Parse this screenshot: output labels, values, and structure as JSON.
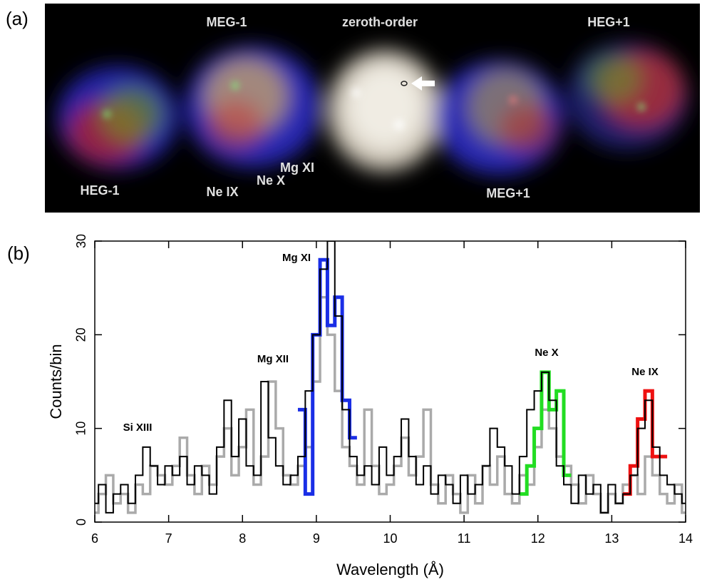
{
  "panel_a": {
    "label": "(a)",
    "labels": [
      "MEG-1",
      "zeroth-order",
      "HEG+1",
      "HEG-1",
      "Ne IX",
      "Ne X",
      "Mg XI",
      "MEG+1"
    ]
  },
  "chart_data": {
    "type": "line",
    "step": true,
    "panel_label": "(b)",
    "xlabel": "Wavelength (Å)",
    "ylabel": "Counts/bin",
    "xlim": [
      6,
      14
    ],
    "xticks": [
      6,
      7,
      8,
      9,
      10,
      11,
      12,
      13,
      14
    ],
    "ylim": [
      0,
      30
    ],
    "yticks": [
      0,
      10,
      20,
      30
    ],
    "grid": false,
    "annotations": [
      "Si XIII",
      "Mg XII",
      "Mg XI",
      "Ne X",
      "Ne IX"
    ],
    "x": [
      6.0,
      6.1,
      6.2,
      6.3,
      6.4,
      6.5,
      6.6,
      6.7,
      6.8,
      6.9,
      7.0,
      7.1,
      7.2,
      7.3,
      7.4,
      7.5,
      7.6,
      7.7,
      7.8,
      7.9,
      8.0,
      8.1,
      8.2,
      8.3,
      8.4,
      8.5,
      8.6,
      8.7,
      8.8,
      8.9,
      9.0,
      9.1,
      9.2,
      9.3,
      9.4,
      9.5,
      9.6,
      9.7,
      9.8,
      9.9,
      10.0,
      10.1,
      10.2,
      10.3,
      10.4,
      10.5,
      10.6,
      10.7,
      10.8,
      10.9,
      11.0,
      11.1,
      11.2,
      11.3,
      11.4,
      11.5,
      11.6,
      11.7,
      11.8,
      11.9,
      12.0,
      12.1,
      12.2,
      12.3,
      12.4,
      12.5,
      12.6,
      12.7,
      12.8,
      12.9,
      13.0,
      13.1,
      13.2,
      13.3,
      13.4,
      13.5,
      13.6,
      13.7,
      13.8,
      13.9,
      14.0
    ],
    "series": [
      {
        "color": "#aaaaaa",
        "width": 3.5,
        "values": [
          1,
          3,
          5,
          2,
          3,
          1,
          4,
          3,
          6,
          5,
          4,
          6,
          9,
          5,
          3,
          6,
          4,
          7,
          10,
          5,
          8,
          12,
          4,
          7,
          15,
          10,
          5,
          4,
          6,
          8,
          15,
          24,
          20,
          14,
          8,
          6,
          4,
          12,
          6,
          3,
          4,
          6,
          9,
          5,
          7,
          12,
          4,
          2,
          5,
          3,
          1,
          5,
          2,
          6,
          4,
          7,
          3,
          2,
          5,
          4,
          8,
          12,
          10,
          7,
          6,
          4,
          2,
          5,
          3,
          1,
          3,
          2,
          4,
          5,
          3,
          7,
          5,
          3,
          2,
          4,
          1
        ]
      },
      {
        "color": "#1a2ee6",
        "width": 5,
        "values": [
          null,
          null,
          null,
          null,
          null,
          null,
          null,
          null,
          null,
          null,
          null,
          null,
          null,
          null,
          null,
          null,
          null,
          null,
          null,
          null,
          null,
          null,
          null,
          null,
          null,
          null,
          null,
          null,
          12,
          3,
          20,
          28,
          21,
          24,
          13,
          9,
          null,
          null,
          null,
          null,
          null,
          null,
          null,
          null,
          null,
          null,
          null,
          null,
          null,
          null,
          null,
          null,
          null,
          null,
          null,
          null,
          null,
          null,
          null,
          null,
          null,
          null,
          null,
          null,
          null,
          null,
          null,
          null,
          null,
          null,
          null,
          null,
          null,
          null,
          null,
          null,
          null,
          null,
          null,
          null,
          null
        ]
      },
      {
        "color": "#22dd22",
        "width": 5,
        "values": [
          null,
          null,
          null,
          null,
          null,
          null,
          null,
          null,
          null,
          null,
          null,
          null,
          null,
          null,
          null,
          null,
          null,
          null,
          null,
          null,
          null,
          null,
          null,
          null,
          null,
          null,
          null,
          null,
          null,
          null,
          null,
          null,
          null,
          null,
          null,
          null,
          null,
          null,
          null,
          null,
          null,
          null,
          null,
          null,
          null,
          null,
          null,
          null,
          null,
          null,
          null,
          null,
          null,
          null,
          null,
          null,
          null,
          null,
          3,
          6,
          10,
          16,
          12,
          14,
          5,
          null,
          null,
          null,
          null,
          null,
          null,
          null,
          null,
          null,
          null,
          null,
          null,
          null,
          null,
          null,
          null
        ]
      },
      {
        "color": "#ee1111",
        "width": 5,
        "values": [
          null,
          null,
          null,
          null,
          null,
          null,
          null,
          null,
          null,
          null,
          null,
          null,
          null,
          null,
          null,
          null,
          null,
          null,
          null,
          null,
          null,
          null,
          null,
          null,
          null,
          null,
          null,
          null,
          null,
          null,
          null,
          null,
          null,
          null,
          null,
          null,
          null,
          null,
          null,
          null,
          null,
          null,
          null,
          null,
          null,
          null,
          null,
          null,
          null,
          null,
          null,
          null,
          null,
          null,
          null,
          null,
          null,
          null,
          null,
          null,
          null,
          null,
          null,
          null,
          null,
          null,
          null,
          null,
          null,
          null,
          null,
          null,
          3,
          6,
          11,
          14,
          7,
          7,
          null,
          null,
          null
        ]
      },
      {
        "color": "#000000",
        "width": 2,
        "values": [
          2,
          4,
          1,
          3,
          4,
          2,
          5,
          8,
          6,
          4,
          6,
          5,
          7,
          4,
          6,
          5,
          3,
          8,
          13,
          7,
          11,
          6,
          5,
          15,
          9,
          6,
          4,
          5,
          7,
          14,
          20,
          27,
          30,
          22,
          12,
          7,
          5,
          6,
          4,
          8,
          5,
          7,
          11,
          7,
          4,
          6,
          3,
          5,
          4,
          2,
          5,
          3,
          4,
          6,
          10,
          8,
          6,
          3,
          7,
          12,
          14,
          16,
          13,
          6,
          4,
          2,
          5,
          3,
          4,
          1,
          4,
          2,
          3,
          5,
          10,
          13,
          8,
          5,
          4,
          3,
          2
        ]
      }
    ]
  }
}
